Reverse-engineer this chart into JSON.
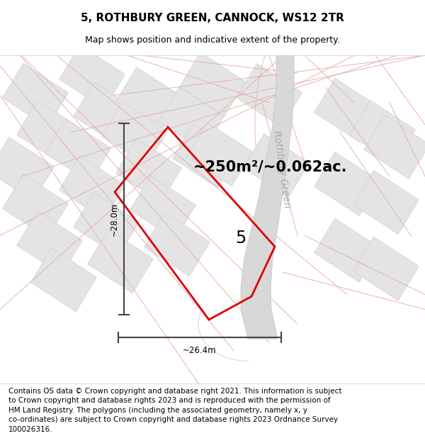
{
  "title_line1": "5, ROTHBURY GREEN, CANNOCK, WS12 2TR",
  "title_line2": "Map shows position and indicative extent of the property.",
  "footer_text": "Contains OS data © Crown copyright and database right 2021. This information is subject\nto Crown copyright and database rights 2023 and is reproduced with the permission of\nHM Land Registry. The polygons (including the associated geometry, namely x, y\nco-ordinates) are subject to Crown copyright and database rights 2023 Ordnance Survey\n100026316.",
  "area_label": "~250m²/~0.062ac.",
  "plot_number": "5",
  "dim_vertical": "~28.0m",
  "dim_horizontal": "~26.4m",
  "road_label": "Rothbury Green",
  "background_color": "#f8f8f8",
  "plot_color": "#dd0000",
  "pink_road_color": "#e8aaaa",
  "gray_block_color": "#e4e4e4",
  "gray_block_edge": "#d0d0d0",
  "road_gray": "#d8d8d8",
  "dim_line_color": "#444444",
  "title_fontsize": 11,
  "subtitle_fontsize": 9,
  "footer_fontsize": 7.5,
  "area_fontsize": 15,
  "plot_number_fontsize": 17,
  "road_label_fontsize": 10
}
